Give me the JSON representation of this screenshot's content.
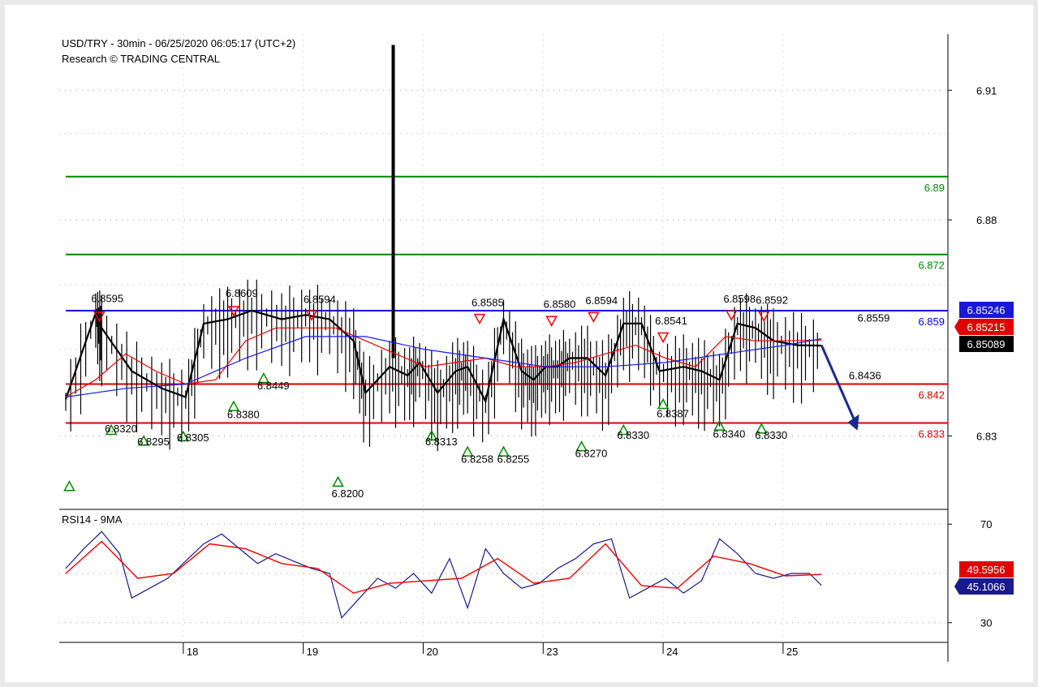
{
  "header": {
    "title": "USD/TRY - 30min - 06/25/2020 06:05:17 (UTC+2)",
    "subtitle": "Research © TRADING CENTRAL"
  },
  "colors": {
    "resistance": "#008800",
    "support": "#dd0000",
    "pivot": "#0000ee",
    "price": "#000000",
    "rsi": "#1a1a8c",
    "rsi_ma": "#ee0000",
    "box_blue": "#1818d8",
    "box_red": "#e00000",
    "box_black": "#000000",
    "arrow": "#1a2a8c"
  },
  "chart_data": [
    {
      "type": "line",
      "name": "price-panel",
      "title": "USD/TRY - 30min - 06/25/2020 06:05:17 (UTC+2)",
      "ylim": [
        6.813,
        6.923
      ],
      "y_ticks": [
        "6.91",
        "6.88",
        "6.83"
      ],
      "y_tick_values": [
        6.91,
        6.88,
        6.83
      ],
      "x_ticks": [
        "18",
        "19",
        "20",
        "23",
        "24",
        "25"
      ],
      "x_tick_positions": [
        1,
        2,
        3,
        4,
        5,
        6
      ],
      "xlim": [
        0,
        7.3
      ],
      "grid": true,
      "series": [
        {
          "role": "close",
          "x": [
            0,
            0.25,
            0.3,
            0.55,
            0.8,
            1.0,
            1.15,
            1.35,
            1.55,
            1.8,
            2.0,
            2.2,
            2.4,
            2.5,
            2.7,
            2.85,
            2.95,
            3.1,
            3.25,
            3.35,
            3.5,
            3.65,
            3.8,
            3.9,
            4.0,
            4.1,
            4.2,
            4.35,
            4.5,
            4.65,
            4.8,
            4.95,
            5.15,
            5.3,
            5.45,
            5.6,
            5.75,
            5.9,
            6.1,
            6.3
          ],
          "y": [
            6.8385,
            6.8585,
            6.855,
            6.845,
            6.841,
            6.839,
            6.856,
            6.857,
            6.859,
            6.857,
            6.858,
            6.857,
            6.852,
            6.84,
            6.846,
            6.844,
            6.847,
            6.84,
            6.845,
            6.846,
            6.838,
            6.857,
            6.845,
            6.843,
            6.846,
            6.846,
            6.848,
            6.848,
            6.844,
            6.856,
            6.856,
            6.845,
            6.846,
            6.845,
            6.843,
            6.856,
            6.855,
            6.852,
            6.851,
            6.8509
          ]
        },
        {
          "role": "ma-red",
          "x": [
            0,
            0.25,
            0.5,
            0.75,
            1.0,
            1.25,
            1.5,
            1.75,
            2.0,
            2.25,
            2.5,
            2.75,
            3.0,
            3.25,
            3.5,
            3.75,
            4.0,
            4.25,
            4.5,
            4.75,
            5.0,
            5.25,
            5.5,
            5.75,
            6.0,
            6.3
          ],
          "y": [
            6.839,
            6.843,
            6.849,
            6.845,
            6.842,
            6.843,
            6.852,
            6.855,
            6.855,
            6.855,
            6.852,
            6.849,
            6.846,
            6.847,
            6.848,
            6.846,
            6.846,
            6.847,
            6.849,
            6.851,
            6.848,
            6.846,
            6.853,
            6.852,
            6.852,
            6.8522
          ]
        },
        {
          "role": "ma-blue",
          "x": [
            0,
            0.5,
            1.0,
            1.5,
            2.0,
            2.5,
            3.0,
            3.5,
            4.0,
            4.5,
            5.0,
            5.5,
            6.0,
            6.3
          ],
          "y": [
            6.839,
            6.841,
            6.842,
            6.848,
            6.853,
            6.853,
            6.85,
            6.848,
            6.846,
            6.846,
            6.847,
            6.849,
            6.851,
            6.8525
          ]
        }
      ],
      "spike": {
        "x": 2.73,
        "y_high": 6.9205,
        "y_low": 6.848
      },
      "levels": [
        {
          "value": 6.89,
          "label": "6.89",
          "kind": "resistance"
        },
        {
          "value": 6.872,
          "label": "6.872",
          "kind": "resistance"
        },
        {
          "value": 6.859,
          "label": "6.859",
          "kind": "pivot"
        },
        {
          "value": 6.842,
          "label": "6.842",
          "kind": "support"
        },
        {
          "value": 6.833,
          "label": "6.833",
          "kind": "support"
        }
      ],
      "value_boxes": [
        {
          "label": "6.85246",
          "value": 6.85246,
          "style": "blue"
        },
        {
          "label": "6.85215",
          "value": 6.85215,
          "style": "red"
        },
        {
          "label": "6.85089",
          "value": 6.85089,
          "style": "black"
        }
      ],
      "forecast_arrow": {
        "x1": 6.3,
        "y1": 6.851,
        "x2": 6.6,
        "y2": 6.832
      },
      "annotation_last": {
        "label": "6.8559",
        "x": 6.6,
        "y": 6.8565
      },
      "annotation_mid": {
        "label": "6.8436",
        "x": 6.65,
        "y": 6.8435
      },
      "highs": [
        {
          "x": 0.28,
          "label": "6.8595",
          "marker_y": 6.8575,
          "label_y": 6.861
        },
        {
          "x": 1.4,
          "label": "6.8609",
          "marker_y": 6.8588,
          "label_y": 6.8622
        },
        {
          "x": 2.05,
          "label": "6.8594",
          "marker_y": 6.8578,
          "label_y": 6.8608
        },
        {
          "x": 3.45,
          "label": "6.8585",
          "marker_y": 6.857,
          "label_y": 6.86
        },
        {
          "x": 4.05,
          "label": "6.8580",
          "marker_y": 6.8565,
          "label_y": 6.8596
        },
        {
          "x": 4.4,
          "label": "6.8594",
          "marker_y": 6.8574,
          "label_y": 6.8605
        },
        {
          "x": 4.98,
          "label": "6.8541",
          "marker_y": 6.8527,
          "label_y": 6.8558
        },
        {
          "x": 5.55,
          "label": "6.8598",
          "marker_y": 6.8578,
          "label_y": 6.8609
        },
        {
          "x": 5.82,
          "label": "6.8592",
          "marker_y": 6.8576,
          "label_y": 6.8606
        }
      ],
      "lows": [
        {
          "x": 0.03,
          "label": "",
          "marker_y": 6.8185,
          "label_y": 6.8185
        },
        {
          "x": 0.38,
          "label": "6.8320",
          "marker_y": 6.8315,
          "label_y": 6.8308
        },
        {
          "x": 0.65,
          "label": "6.8295",
          "marker_y": 6.829,
          "label_y": 6.8278
        },
        {
          "x": 0.98,
          "label": "6.8305",
          "marker_y": 6.83,
          "label_y": 6.8288
        },
        {
          "x": 1.4,
          "label": "6.8380",
          "marker_y": 6.837,
          "label_y": 6.8341
        },
        {
          "x": 1.65,
          "label": "6.8449",
          "marker_y": 6.8435,
          "label_y": 6.8408
        },
        {
          "x": 2.27,
          "label": "6.8200",
          "marker_y": 6.8195,
          "label_y": 6.8158
        },
        {
          "x": 3.05,
          "label": "6.8313",
          "marker_y": 6.8302,
          "label_y": 6.8278
        },
        {
          "x": 3.35,
          "label": "6.8258",
          "marker_y": 6.8265,
          "label_y": 6.8238
        },
        {
          "x": 3.65,
          "label": "6.8255",
          "marker_y": 6.8265,
          "label_y": 6.8238
        },
        {
          "x": 4.3,
          "label": "6.8270",
          "marker_y": 6.8277,
          "label_y": 6.8251
        },
        {
          "x": 4.65,
          "label": "6.8330",
          "marker_y": 6.8315,
          "label_y": 6.8293
        },
        {
          "x": 4.98,
          "label": "6.8387",
          "marker_y": 6.8375,
          "label_y": 6.8343
        },
        {
          "x": 5.45,
          "label": "6.8340",
          "marker_y": 6.8325,
          "label_y": 6.8296
        },
        {
          "x": 5.8,
          "label": "6.8330",
          "marker_y": 6.8318,
          "label_y": 6.8293
        }
      ]
    },
    {
      "type": "line",
      "name": "rsi-panel",
      "title": "RSI14 - 9MA",
      "ylim": [
        22,
        76
      ],
      "y_ticks": [
        "70",
        "30"
      ],
      "y_tick_values": [
        70,
        30
      ],
      "grid": true,
      "series": [
        {
          "role": "rsi",
          "x": [
            0,
            0.15,
            0.3,
            0.45,
            0.55,
            0.7,
            0.85,
            1.0,
            1.15,
            1.3,
            1.45,
            1.6,
            1.75,
            1.9,
            2.05,
            2.2,
            2.3,
            2.45,
            2.6,
            2.75,
            2.9,
            3.05,
            3.2,
            3.35,
            3.5,
            3.65,
            3.8,
            3.95,
            4.1,
            4.25,
            4.4,
            4.55,
            4.7,
            4.85,
            5.0,
            5.15,
            5.3,
            5.45,
            5.6,
            5.75,
            5.9,
            6.05,
            6.2,
            6.3
          ],
          "y": [
            52,
            60,
            67,
            58,
            40,
            44,
            48,
            55,
            62,
            66,
            60,
            54,
            58,
            55,
            52,
            50,
            32,
            40,
            48,
            44,
            50,
            42,
            56,
            36,
            60,
            50,
            44,
            46,
            52,
            56,
            62,
            64,
            40,
            44,
            48,
            42,
            47,
            64,
            58,
            50,
            48,
            50,
            50,
            45.1
          ]
        },
        {
          "role": "rsi-ma",
          "x": [
            0,
            0.3,
            0.6,
            0.9,
            1.2,
            1.5,
            1.8,
            2.1,
            2.4,
            2.7,
            3.0,
            3.3,
            3.6,
            3.9,
            4.2,
            4.5,
            4.8,
            5.1,
            5.4,
            5.7,
            6.0,
            6.3
          ],
          "y": [
            50,
            63,
            48,
            50,
            62,
            60,
            54,
            52,
            42,
            46,
            47,
            48,
            56,
            46,
            48,
            62,
            45,
            44,
            57,
            54,
            49,
            49.6
          ]
        }
      ],
      "value_boxes": [
        {
          "label": "49.5956",
          "value": 49.5956,
          "style": "red"
        },
        {
          "label": "45.1066",
          "value": 45.1066,
          "style": "navy"
        }
      ]
    }
  ]
}
